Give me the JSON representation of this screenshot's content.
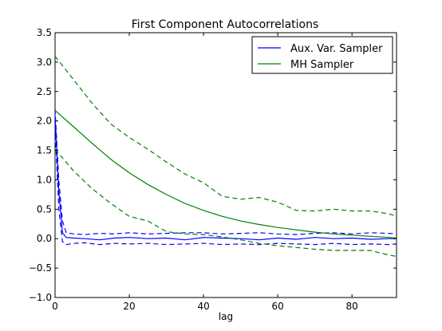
{
  "chart_data": {
    "type": "line",
    "title": "First Component Autocorrelations",
    "xlabel": "lag",
    "ylabel": "",
    "xlim": [
      0,
      92
    ],
    "ylim": [
      -1.0,
      3.5
    ],
    "xticks": [
      0,
      20,
      40,
      60,
      80
    ],
    "xtick_labels": [
      "0",
      "20",
      "40",
      "60",
      "80"
    ],
    "yticks": [
      -1.0,
      -0.5,
      0.0,
      0.5,
      1.0,
      1.5,
      2.0,
      2.5,
      3.0,
      3.5
    ],
    "ytick_labels": [
      "−1.0",
      "−0.5",
      "0.0",
      "0.5",
      "1.0",
      "1.5",
      "2.0",
      "2.5",
      "3.0",
      "3.5"
    ],
    "grid": false,
    "legend_position": "top-right",
    "legend": [
      {
        "label": "Aux. Var. Sampler",
        "color": "#0000ff"
      },
      {
        "label": "MH Sampler",
        "color": "#008000"
      }
    ],
    "series": [
      {
        "name": "Aux. Var. Sampler",
        "color": "#0000ff",
        "style": "solid",
        "x": [
          0,
          1,
          2,
          3,
          5,
          8,
          12,
          16,
          20,
          25,
          30,
          35,
          40,
          45,
          50,
          55,
          60,
          65,
          70,
          75,
          80,
          85,
          90,
          92
        ],
        "y": [
          2.1,
          0.8,
          0.1,
          0.02,
          0.01,
          0.0,
          -0.02,
          0.01,
          0.02,
          0.0,
          0.01,
          -0.02,
          0.02,
          0.01,
          0.0,
          -0.02,
          0.01,
          -0.01,
          0.02,
          0.0,
          0.01,
          -0.01,
          0.0,
          0.0
        ]
      },
      {
        "name": "Aux. Var. Sampler upper band",
        "color": "#0000ff",
        "style": "dashed",
        "x": [
          0,
          1,
          2,
          3,
          5,
          8,
          12,
          16,
          20,
          25,
          30,
          35,
          40,
          45,
          50,
          55,
          60,
          65,
          70,
          75,
          80,
          85,
          90,
          92
        ],
        "y": [
          2.2,
          1.0,
          0.3,
          0.1,
          0.08,
          0.07,
          0.09,
          0.08,
          0.1,
          0.08,
          0.09,
          0.1,
          0.1,
          0.08,
          0.09,
          0.1,
          0.08,
          0.07,
          0.09,
          0.1,
          0.08,
          0.1,
          0.09,
          0.08
        ]
      },
      {
        "name": "Aux. Var. Sampler lower band",
        "color": "#0000ff",
        "style": "dashed",
        "x": [
          0,
          1,
          2,
          3,
          5,
          8,
          12,
          16,
          20,
          25,
          30,
          35,
          40,
          45,
          50,
          55,
          60,
          65,
          70,
          75,
          80,
          85,
          90,
          92
        ],
        "y": [
          1.9,
          0.5,
          -0.05,
          -0.1,
          -0.08,
          -0.07,
          -0.1,
          -0.08,
          -0.09,
          -0.08,
          -0.1,
          -0.09,
          -0.08,
          -0.1,
          -0.09,
          -0.1,
          -0.08,
          -0.09,
          -0.1,
          -0.08,
          -0.1,
          -0.09,
          -0.1,
          -0.09
        ]
      },
      {
        "name": "MH Sampler",
        "color": "#008000",
        "style": "solid",
        "x": [
          0,
          5,
          10,
          15,
          20,
          25,
          30,
          35,
          40,
          45,
          50,
          55,
          60,
          65,
          70,
          75,
          80,
          85,
          90,
          92
        ],
        "y": [
          2.18,
          1.9,
          1.62,
          1.35,
          1.12,
          0.92,
          0.75,
          0.6,
          0.48,
          0.38,
          0.3,
          0.24,
          0.19,
          0.15,
          0.11,
          0.08,
          0.06,
          0.04,
          0.02,
          0.01
        ]
      },
      {
        "name": "MH Sampler upper band",
        "color": "#008000",
        "style": "dashed",
        "x": [
          0,
          5,
          10,
          15,
          20,
          25,
          30,
          35,
          40,
          45,
          50,
          55,
          60,
          65,
          70,
          75,
          80,
          85,
          90,
          92
        ],
        "y": [
          3.1,
          2.7,
          2.3,
          1.95,
          1.72,
          1.52,
          1.3,
          1.1,
          0.95,
          0.72,
          0.67,
          0.7,
          0.62,
          0.48,
          0.47,
          0.5,
          0.47,
          0.47,
          0.42,
          0.38
        ]
      },
      {
        "name": "MH Sampler lower band",
        "color": "#008000",
        "style": "dashed",
        "x": [
          0,
          5,
          10,
          15,
          20,
          25,
          30,
          35,
          40,
          45,
          50,
          55,
          60,
          65,
          70,
          75,
          80,
          85,
          90,
          92
        ],
        "y": [
          1.52,
          1.15,
          0.85,
          0.6,
          0.38,
          0.3,
          0.12,
          0.08,
          0.07,
          0.03,
          -0.02,
          -0.08,
          -0.12,
          -0.15,
          -0.18,
          -0.2,
          -0.2,
          -0.2,
          -0.28,
          -0.3
        ]
      }
    ]
  }
}
